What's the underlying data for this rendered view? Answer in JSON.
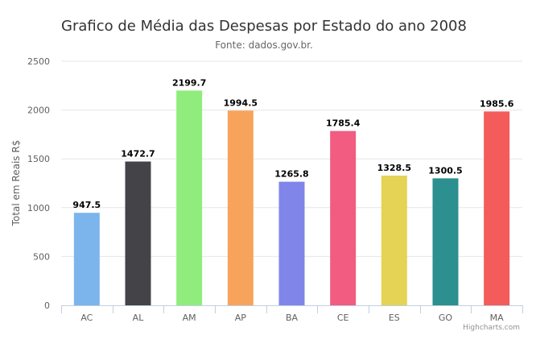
{
  "chart_data": {
    "type": "bar",
    "title": "Grafico de Média das Despesas por Estado do ano 2008",
    "subtitle": "Fonte: dados.gov.br.",
    "xlabel": "",
    "ylabel": "Total em Reais R$",
    "categories": [
      "AC",
      "AL",
      "AM",
      "AP",
      "BA",
      "CE",
      "ES",
      "GO",
      "MA"
    ],
    "values": [
      947.5,
      1472.7,
      2199.7,
      1994.5,
      1265.8,
      1785.4,
      1328.5,
      1300.5,
      1985.6
    ],
    "data_labels": [
      "947.5",
      "1472.7",
      "2199.7",
      "1994.5",
      "1265.8",
      "1785.4",
      "1328.5",
      "1300.5",
      "1985.6"
    ],
    "colors": [
      "#7cb5ec",
      "#434348",
      "#90ed7d",
      "#f7a35c",
      "#8085e9",
      "#f15c80",
      "#e4d354",
      "#2b908f",
      "#f45b5b"
    ],
    "ylim": [
      0,
      2500
    ],
    "yticks": [
      0,
      500,
      1000,
      1500,
      2000,
      2500
    ],
    "grid": true,
    "legend": "none",
    "credits": "Highcharts.com"
  }
}
